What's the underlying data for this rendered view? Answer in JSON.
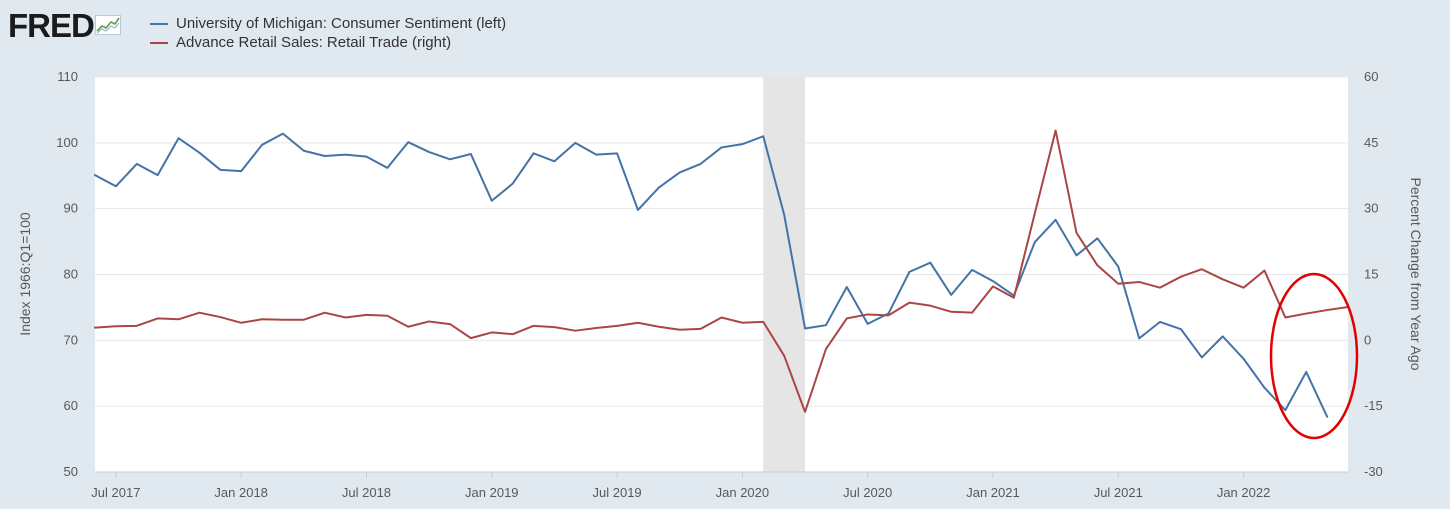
{
  "branding": {
    "logo_text": "FRED",
    "logo_mark": "fred-graph-icon"
  },
  "chart_data": {
    "type": "line",
    "source": "FRED",
    "title": "",
    "xlabel": "",
    "ylabel_left": "Index 1966:Q1=100",
    "ylabel_right": "Percent Change from Year Ago",
    "ylim_left": [
      50,
      110
    ],
    "ylim_right": [
      -30,
      60
    ],
    "yticks_left": [
      50,
      60,
      70,
      80,
      90,
      100,
      110
    ],
    "yticks_right": [
      -30,
      -15,
      0,
      15,
      30,
      45,
      60
    ],
    "x_ticks": [
      "Jul 2017",
      "Jan 2018",
      "Jul 2018",
      "Jan 2019",
      "Jul 2019",
      "Jan 2020",
      "Jul 2020",
      "Jan 2021",
      "Jul 2021",
      "Jan 2022"
    ],
    "x_range": [
      "2017-06",
      "2022-06"
    ],
    "grid": true,
    "legend_position": "top-left",
    "recession_shading": {
      "start": "2020-02",
      "end": "2020-04",
      "color": "#e5e5e5"
    },
    "annotation": {
      "type": "red-ellipse",
      "target": "2022-03 to 2022-05 values",
      "color": "#e30000"
    },
    "series": [
      {
        "name": "University of Michigan: Consumer Sentiment (left)",
        "axis": "left",
        "color": "#4572a7",
        "start": "2017-06",
        "values": [
          95.1,
          93.4,
          96.8,
          95.1,
          100.7,
          98.5,
          95.9,
          95.7,
          99.7,
          101.4,
          98.8,
          98.0,
          98.2,
          97.9,
          96.2,
          100.1,
          98.6,
          97.5,
          98.3,
          91.2,
          93.8,
          98.4,
          97.2,
          100.0,
          98.2,
          98.4,
          89.8,
          93.2,
          95.5,
          96.8,
          99.3,
          99.8,
          101.0,
          89.1,
          71.8,
          72.3,
          78.1,
          72.5,
          74.1,
          80.4,
          81.8,
          76.9,
          80.7,
          79.0,
          76.8,
          84.9,
          88.3,
          82.9,
          85.5,
          81.2,
          70.3,
          72.8,
          71.7,
          67.4,
          70.6,
          67.2,
          62.8,
          59.4,
          65.2,
          58.4
        ]
      },
      {
        "name": "Advance Retail Sales: Retail Trade (right)",
        "axis": "right",
        "color": "#aa4643",
        "start": "2017-06",
        "values": [
          2.9,
          3.2,
          3.3,
          5.0,
          4.8,
          6.3,
          5.3,
          4.0,
          4.8,
          4.7,
          4.7,
          6.3,
          5.2,
          5.8,
          5.6,
          3.1,
          4.3,
          3.7,
          0.5,
          1.8,
          1.4,
          3.3,
          3.0,
          2.2,
          2.8,
          3.3,
          4.0,
          3.1,
          2.4,
          2.6,
          5.2,
          4.0,
          4.2,
          -3.5,
          -16.3,
          -2.0,
          5.0,
          5.9,
          5.7,
          8.6,
          7.9,
          6.5,
          6.3,
          12.3,
          9.7,
          28.9,
          47.8,
          24.5,
          17.1,
          12.9,
          13.3,
          12.0,
          14.5,
          16.2,
          13.9,
          12.0,
          15.9,
          5.2,
          6.1,
          6.9,
          7.6
        ]
      }
    ]
  }
}
